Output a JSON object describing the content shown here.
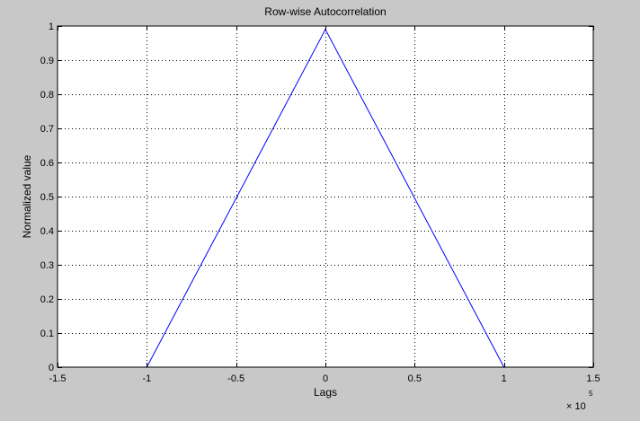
{
  "chart_data": {
    "type": "line",
    "title": "Row-wise Autocorrelation",
    "xlabel": "Lags",
    "ylabel": "Normalized value",
    "x_multiplier": {
      "base": "× 10",
      "exponent": "5"
    },
    "xlim": [
      -1.5,
      1.5
    ],
    "ylim": [
      0,
      1
    ],
    "x_ticks": [
      -1.5,
      -1,
      -0.5,
      0,
      0.5,
      1,
      1.5
    ],
    "x_tick_labels": [
      "-1.5",
      "-1",
      "-0.5",
      "0",
      "0.5",
      "1",
      "1.5"
    ],
    "y_ticks": [
      0,
      0.1,
      0.2,
      0.3,
      0.4,
      0.5,
      0.6,
      0.7,
      0.8,
      0.9,
      1
    ],
    "y_tick_labels": [
      "0",
      "0.1",
      "0.2",
      "0.3",
      "0.4",
      "0.5",
      "0.6",
      "0.7",
      "0.8",
      "0.9",
      "1"
    ],
    "grid": true,
    "series": [
      {
        "color": "#0000ff",
        "x": [
          -1,
          0,
          1
        ],
        "y": [
          0,
          0.99,
          0
        ]
      }
    ]
  }
}
